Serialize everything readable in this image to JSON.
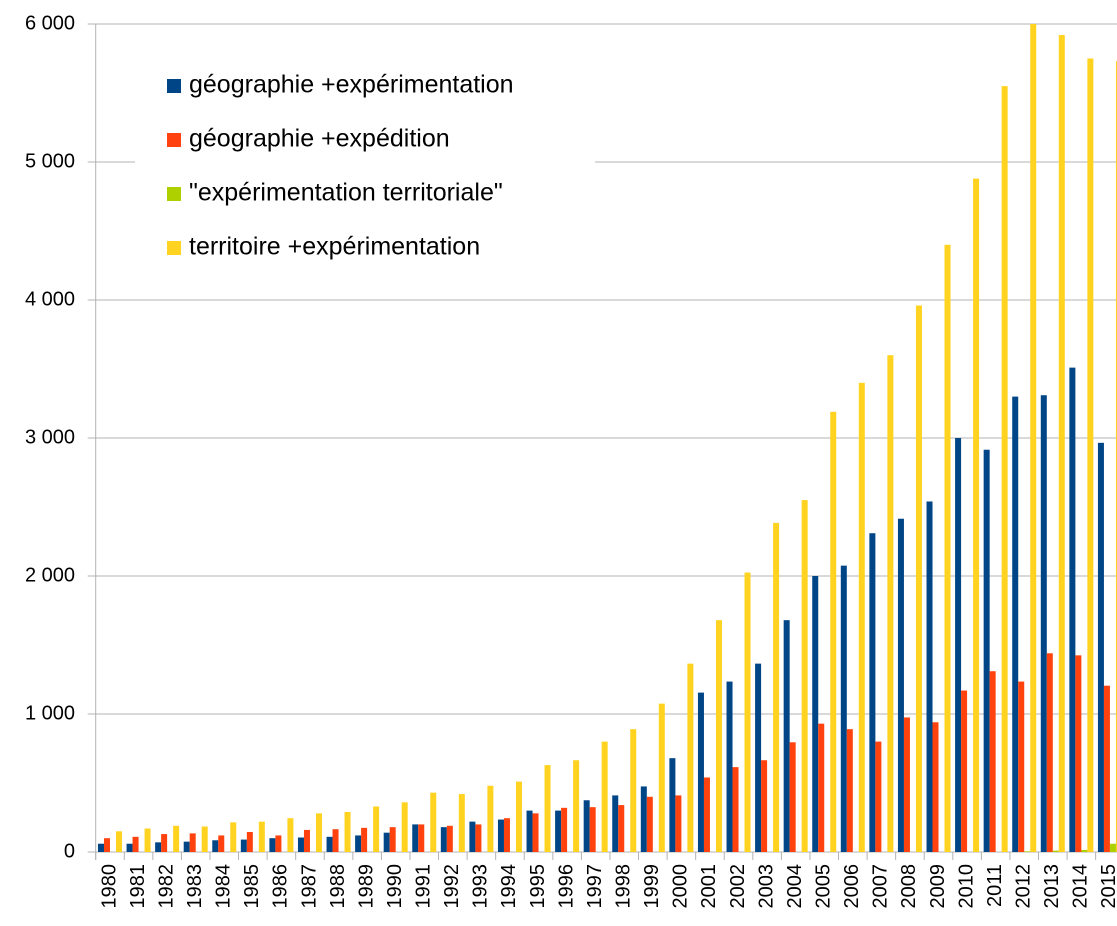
{
  "chart_data": {
    "type": "bar",
    "categories": [
      "1980",
      "1981",
      "1982",
      "1983",
      "1984",
      "1985",
      "1986",
      "1987",
      "1988",
      "1989",
      "1990",
      "1991",
      "1992",
      "1993",
      "1994",
      "1995",
      "1996",
      "1997",
      "1998",
      "1999",
      "2000",
      "2001",
      "2002",
      "2003",
      "2004",
      "2005",
      "2006",
      "2007",
      "2008",
      "2009",
      "2010",
      "2011",
      "2012",
      "2013",
      "2014",
      "2015"
    ],
    "series": [
      {
        "name": "géographie +expérimentation",
        "color": "#004586",
        "values": [
          60,
          60,
          70,
          75,
          85,
          90,
          100,
          105,
          110,
          120,
          140,
          200,
          180,
          220,
          235,
          300,
          300,
          375,
          410,
          475,
          680,
          1155,
          1235,
          1365,
          1680,
          2000,
          2075,
          2310,
          2415,
          2540,
          3000,
          2915,
          3300,
          3310,
          3510,
          2965
        ]
      },
      {
        "name": "géographie +expédition",
        "color": "#ff420e",
        "values": [
          100,
          110,
          130,
          135,
          120,
          145,
          120,
          160,
          165,
          175,
          180,
          200,
          190,
          200,
          245,
          280,
          320,
          325,
          340,
          400,
          410,
          540,
          615,
          665,
          795,
          930,
          890,
          800,
          975,
          940,
          1170,
          1310,
          1235,
          1440,
          1425,
          1205
        ]
      },
      {
        "name": "\"expérimentation territoriale\"",
        "color": "#aecf00",
        "values": [
          0,
          0,
          0,
          0,
          0,
          0,
          0,
          0,
          0,
          0,
          0,
          0,
          0,
          0,
          0,
          0,
          0,
          0,
          0,
          0,
          0,
          0,
          0,
          0,
          0,
          0,
          0,
          0,
          0,
          0,
          0,
          0,
          5,
          10,
          15,
          60
        ]
      },
      {
        "name": "territoire +expérimentation",
        "color": "#ffd320",
        "values": [
          150,
          170,
          190,
          185,
          215,
          220,
          245,
          280,
          290,
          330,
          360,
          430,
          420,
          480,
          510,
          630,
          665,
          800,
          890,
          1075,
          1365,
          1680,
          2025,
          2385,
          2550,
          3190,
          3400,
          3600,
          3960,
          4400,
          4880,
          5550,
          6000,
          5920,
          5750,
          5730
        ]
      }
    ],
    "ylim": [
      0,
      6000
    ],
    "yticks": [
      0,
      {
        "value": 1000,
        "label": "1 000"
      },
      {
        "value": 2000,
        "label": "2 000"
      },
      {
        "value": 3000,
        "label": "3 000"
      },
      {
        "value": 4000,
        "label": "4 000"
      },
      {
        "value": 5000,
        "label": "5 000"
      },
      {
        "value": 6000,
        "label": "6 000"
      }
    ],
    "grid": true
  }
}
